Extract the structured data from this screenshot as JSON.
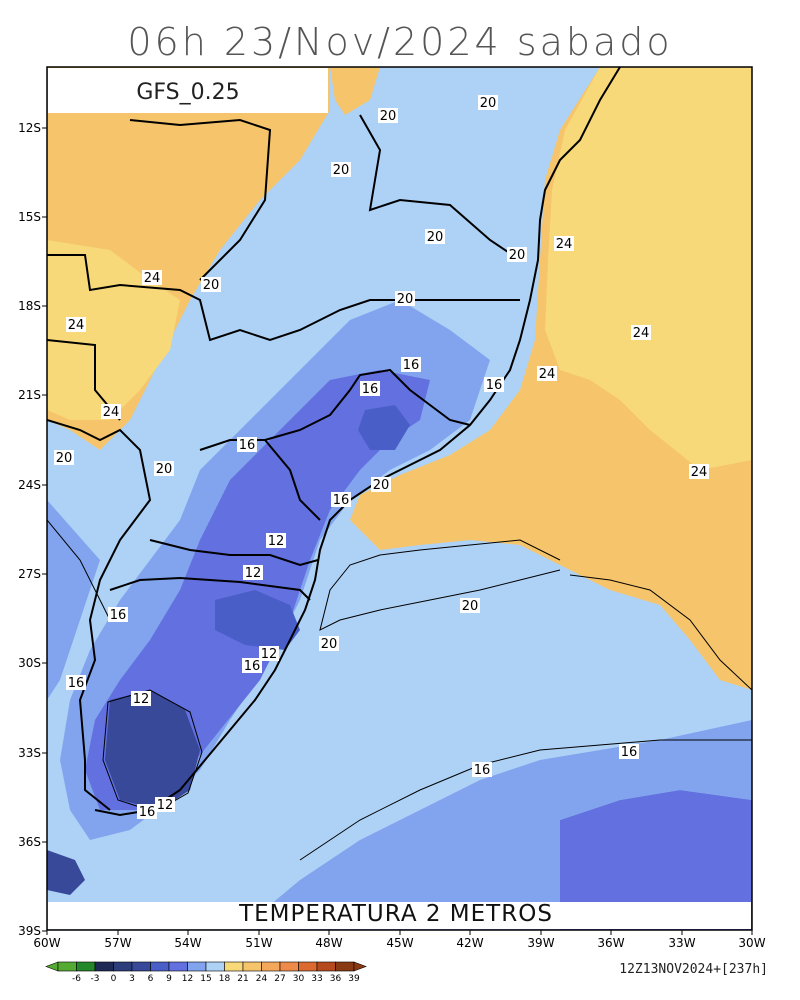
{
  "title": "06h 23/Nov/2024 sabado",
  "model_label": "GFS_0.25",
  "field_label": "TEMPERATURA 2 METROS",
  "run_label": "12Z13NOV2024+[237h]",
  "lon_ticks": [
    "60W",
    "57W",
    "54W",
    "51W",
    "48W",
    "45W",
    "42W",
    "39W",
    "36W",
    "33W",
    "30W"
  ],
  "lat_ticks": [
    "12S",
    "15S",
    "18S",
    "21S",
    "24S",
    "27S",
    "30S",
    "33S",
    "36S",
    "39S"
  ],
  "colorbar": {
    "labels": [
      "-6",
      "-3",
      "0",
      "3",
      "6",
      "9",
      "12",
      "15",
      "18",
      "21",
      "24",
      "27",
      "30",
      "33",
      "36",
      "39"
    ],
    "colors": [
      "#55aa33",
      "#22882a",
      "#1e2a55",
      "#2b3d7a",
      "#38499a",
      "#4a5ec8",
      "#6270e0",
      "#82a4ee",
      "#aed2f6",
      "#f7d97a",
      "#f6c46a",
      "#f4a85c",
      "#ee8a4a",
      "#dc6a30",
      "#b44a1e",
      "#8a3a12"
    ]
  },
  "contour_labels": [
    {
      "text": "20"
    },
    {
      "text": "20"
    },
    {
      "text": "20"
    },
    {
      "text": "20"
    },
    {
      "text": "20"
    },
    {
      "text": "20"
    },
    {
      "text": "24"
    },
    {
      "text": "24"
    },
    {
      "text": "24"
    },
    {
      "text": "24"
    },
    {
      "text": "24"
    },
    {
      "text": "24"
    },
    {
      "text": "16"
    },
    {
      "text": "16"
    },
    {
      "text": "16"
    },
    {
      "text": "20"
    },
    {
      "text": "20"
    },
    {
      "text": "16"
    },
    {
      "text": "20"
    },
    {
      "text": "16"
    },
    {
      "text": "12"
    },
    {
      "text": "12"
    },
    {
      "text": "20"
    },
    {
      "text": "20"
    },
    {
      "text": "16"
    },
    {
      "text": "12"
    },
    {
      "text": "16"
    },
    {
      "text": "16"
    },
    {
      "text": "12"
    },
    {
      "text": "20"
    },
    {
      "text": "16"
    },
    {
      "text": "16"
    },
    {
      "text": "16"
    },
    {
      "text": "12"
    },
    {
      "text": "24"
    }
  ],
  "colors": {
    "warm": "#f6c46a",
    "warm_light": "#f7d97a",
    "cool_light": "#aed2f6",
    "cool": "#82a4ee",
    "cool_mid": "#6270e0",
    "cold": "#4a5ec8",
    "colder": "#38499a"
  }
}
